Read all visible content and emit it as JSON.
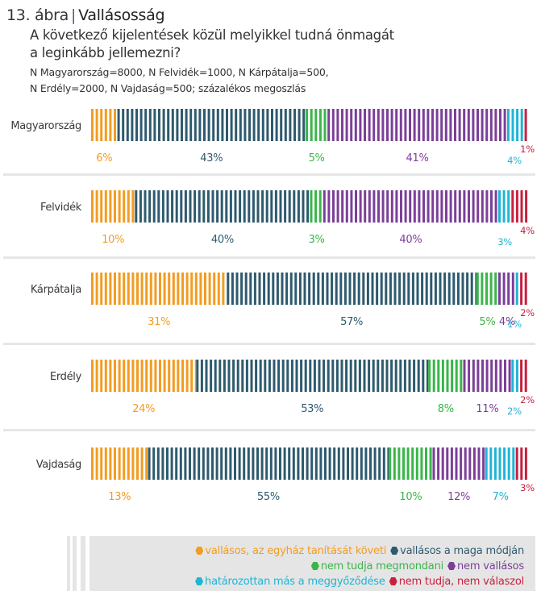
{
  "header": {
    "figure_number": "13. ábra",
    "separator": "|",
    "title": "Vallásosság",
    "question_line1": "A következő kijelentések közül melyikkel tudná önmagát",
    "question_line2": "a leginkább jellemezni?",
    "n_line1": "N Magyarország=8000, N Felvidék=1000, N Kárpátalja=500,",
    "n_line2": "N Erdély=2000, N Vajdaság=500; százalékos megoszlás"
  },
  "chart_data": {
    "type": "bar",
    "orientation": "horizontal-stacked-100",
    "title": "Vallásosság",
    "xlabel": "",
    "ylabel": "",
    "xlim": [
      0,
      100
    ],
    "grid": false,
    "legend_position": "bottom",
    "categories": [
      "Magyarország",
      "Felvidék",
      "Kárpátalja",
      "Erdély",
      "Vajdaság"
    ],
    "series": [
      {
        "name": "vallásos, az egyház tanítását követi",
        "color": "#f39c21",
        "values": [
          6,
          10,
          31,
          24,
          13
        ]
      },
      {
        "name": "vallásos a maga módján",
        "color": "#2e5a6e",
        "values": [
          43,
          40,
          57,
          53,
          55
        ]
      },
      {
        "name": "nem tudja megmondani",
        "color": "#3ab54a",
        "values": [
          5,
          3,
          5,
          8,
          10
        ]
      },
      {
        "name": "nem vallásos",
        "color": "#7b3f98",
        "values": [
          41,
          40,
          4,
          11,
          12
        ]
      },
      {
        "name": "határozottan más a meggyőződése",
        "color": "#1fb5d4",
        "values": [
          4,
          3,
          1,
          2,
          7
        ]
      },
      {
        "name": "nem tudja, nem válaszol",
        "color": "#c8203f",
        "values": [
          1,
          4,
          2,
          2,
          3
        ]
      }
    ],
    "label_suffix": "%"
  },
  "legend": {
    "rows": [
      [
        0,
        1
      ],
      [
        2,
        3
      ],
      [
        4,
        5
      ]
    ]
  }
}
